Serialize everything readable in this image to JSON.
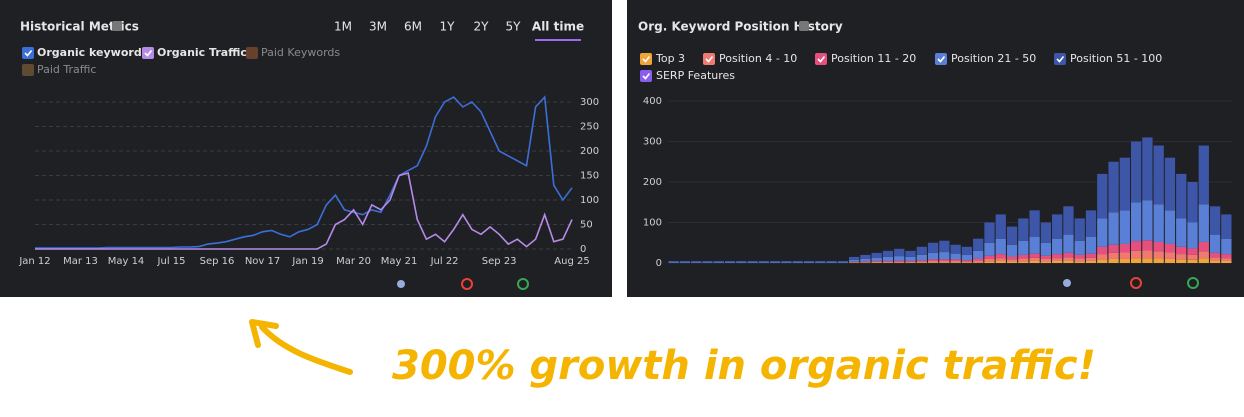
{
  "chart_data": [
    {
      "type": "line",
      "title": "Historical Metrics",
      "range_buttons": [
        {
          "label": "1M",
          "selected": false
        },
        {
          "label": "3M",
          "selected": false
        },
        {
          "label": "6M",
          "selected": false
        },
        {
          "label": "1Y",
          "selected": false
        },
        {
          "label": "2Y",
          "selected": false
        },
        {
          "label": "5Y",
          "selected": false
        },
        {
          "label": "All time",
          "selected": true
        }
      ],
      "categories": [
        "Jan 12",
        null,
        null,
        null,
        null,
        "Mar 13",
        null,
        null,
        null,
        null,
        "May 14",
        null,
        null,
        null,
        null,
        "Jul 15",
        null,
        null,
        null,
        null,
        "Sep 16",
        null,
        null,
        null,
        null,
        "Nov 17",
        null,
        null,
        null,
        null,
        "Jan 19",
        null,
        null,
        null,
        null,
        "Mar 20",
        null,
        null,
        null,
        null,
        "May 21",
        null,
        null,
        null,
        null,
        "Jul 22",
        null,
        null,
        null,
        null,
        null,
        "Sep 23",
        null,
        null,
        null,
        null,
        null,
        null,
        null,
        "Aug 25"
      ],
      "series": [
        {
          "name": "Organic keywords",
          "color": "#3b6fd8",
          "values": [
            2,
            2,
            2,
            2,
            2,
            2,
            2,
            2,
            3,
            3,
            3,
            3,
            3,
            3,
            3,
            3,
            4,
            4,
            5,
            10,
            12,
            15,
            20,
            25,
            28,
            35,
            38,
            30,
            25,
            35,
            40,
            50,
            90,
            110,
            80,
            75,
            70,
            80,
            75,
            110,
            150,
            160,
            170,
            210,
            270,
            300,
            310,
            290,
            300,
            280,
            240,
            200,
            190,
            180,
            170,
            290,
            310,
            130,
            100,
            125
          ]
        },
        {
          "name": "Organic Traffic",
          "color": "#b68be8",
          "values": [
            0,
            0,
            0,
            0,
            0,
            0,
            0,
            0,
            0,
            0,
            0,
            0,
            0,
            0,
            0,
            0,
            0,
            0,
            0,
            0,
            0,
            0,
            0,
            0,
            0,
            0,
            0,
            0,
            0,
            0,
            0,
            0,
            10,
            50,
            60,
            80,
            50,
            90,
            80,
            100,
            150,
            155,
            60,
            20,
            30,
            15,
            40,
            70,
            40,
            30,
            45,
            30,
            10,
            20,
            5,
            20,
            70,
            15,
            20,
            60
          ]
        }
      ],
      "inactive_series": [
        {
          "name": "Paid Keywords",
          "color": "#7a4a30"
        },
        {
          "name": "Paid Traffic",
          "color": "#6e5636"
        }
      ],
      "ylim": [
        0,
        320
      ],
      "yticks": [
        0,
        50,
        100,
        150,
        200,
        250,
        300
      ],
      "grid": true
    },
    {
      "type": "stacked_bar",
      "title": "Org. Keyword Position History",
      "series": [
        {
          "name": "Top 3",
          "color": "#f0a43a",
          "values": [
            0,
            0,
            0,
            0,
            0,
            0,
            0,
            0,
            0,
            0,
            0,
            0,
            0,
            0,
            0,
            0,
            1,
            1,
            1,
            1,
            1,
            1,
            2,
            2,
            2,
            2,
            2,
            2,
            4,
            5,
            4,
            4,
            5,
            4,
            5,
            6,
            4,
            5,
            9,
            10,
            10,
            12,
            12,
            12,
            10,
            9,
            8,
            12,
            6,
            5
          ]
        },
        {
          "name": "Position 4 - 10",
          "color": "#f07a72",
          "values": [
            0,
            0,
            0,
            0,
            0,
            0,
            0,
            0,
            0,
            0,
            0,
            0,
            0,
            0,
            0,
            0,
            1,
            1,
            2,
            2,
            2,
            2,
            2,
            3,
            3,
            3,
            2,
            4,
            6,
            7,
            5,
            7,
            8,
            6,
            7,
            8,
            7,
            8,
            13,
            15,
            16,
            18,
            19,
            17,
            16,
            13,
            12,
            17,
            8,
            7
          ]
        },
        {
          "name": "Position 11 - 20",
          "color": "#e6507e",
          "values": [
            0,
            0,
            0,
            0,
            0,
            0,
            0,
            0,
            0,
            0,
            0,
            0,
            0,
            0,
            0,
            0,
            1,
            2,
            2,
            2,
            3,
            2,
            3,
            4,
            4,
            4,
            3,
            5,
            8,
            10,
            7,
            9,
            10,
            8,
            10,
            11,
            9,
            10,
            18,
            20,
            21,
            24,
            25,
            23,
            21,
            18,
            16,
            23,
            11,
            10
          ]
        },
        {
          "name": "Position 21 - 50",
          "color": "#5a7fd6",
          "values": [
            2,
            2,
            2,
            2,
            2,
            2,
            2,
            2,
            2,
            2,
            2,
            2,
            2,
            2,
            2,
            2,
            5,
            6,
            8,
            10,
            11,
            10,
            13,
            16,
            18,
            14,
            13,
            19,
            32,
            38,
            29,
            35,
            42,
            32,
            38,
            45,
            35,
            42,
            70,
            80,
            83,
            96,
            99,
            93,
            83,
            70,
            64,
            93,
            45,
            38
          ]
        },
        {
          "name": "Position 51 - 100",
          "color": "#3d56a8",
          "values": [
            3,
            3,
            3,
            3,
            3,
            3,
            3,
            3,
            3,
            3,
            3,
            3,
            3,
            3,
            3,
            3,
            7,
            10,
            12,
            15,
            18,
            15,
            20,
            25,
            28,
            22,
            20,
            30,
            50,
            60,
            45,
            55,
            65,
            50,
            60,
            70,
            55,
            65,
            110,
            125,
            130,
            150,
            155,
            145,
            130,
            110,
            100,
            145,
            70,
            60
          ]
        },
        {
          "name": "SERP Features",
          "color": "#8b5cf0",
          "values": [
            0,
            0,
            0,
            0,
            0,
            0,
            0,
            0,
            0,
            0,
            0,
            0,
            0,
            0,
            0,
            0,
            0,
            0,
            0,
            0,
            0,
            0,
            0,
            0,
            0,
            0,
            0,
            0,
            0,
            0,
            0,
            0,
            0,
            0,
            0,
            0,
            0,
            0,
            0,
            0,
            0,
            0,
            0,
            0,
            0,
            0,
            0,
            0,
            0,
            0
          ]
        }
      ],
      "ylim": [
        0,
        420
      ],
      "yticks": [
        0,
        100,
        200,
        300,
        400
      ],
      "grid": true
    }
  ],
  "caption": "300% growth in organic traffic!"
}
